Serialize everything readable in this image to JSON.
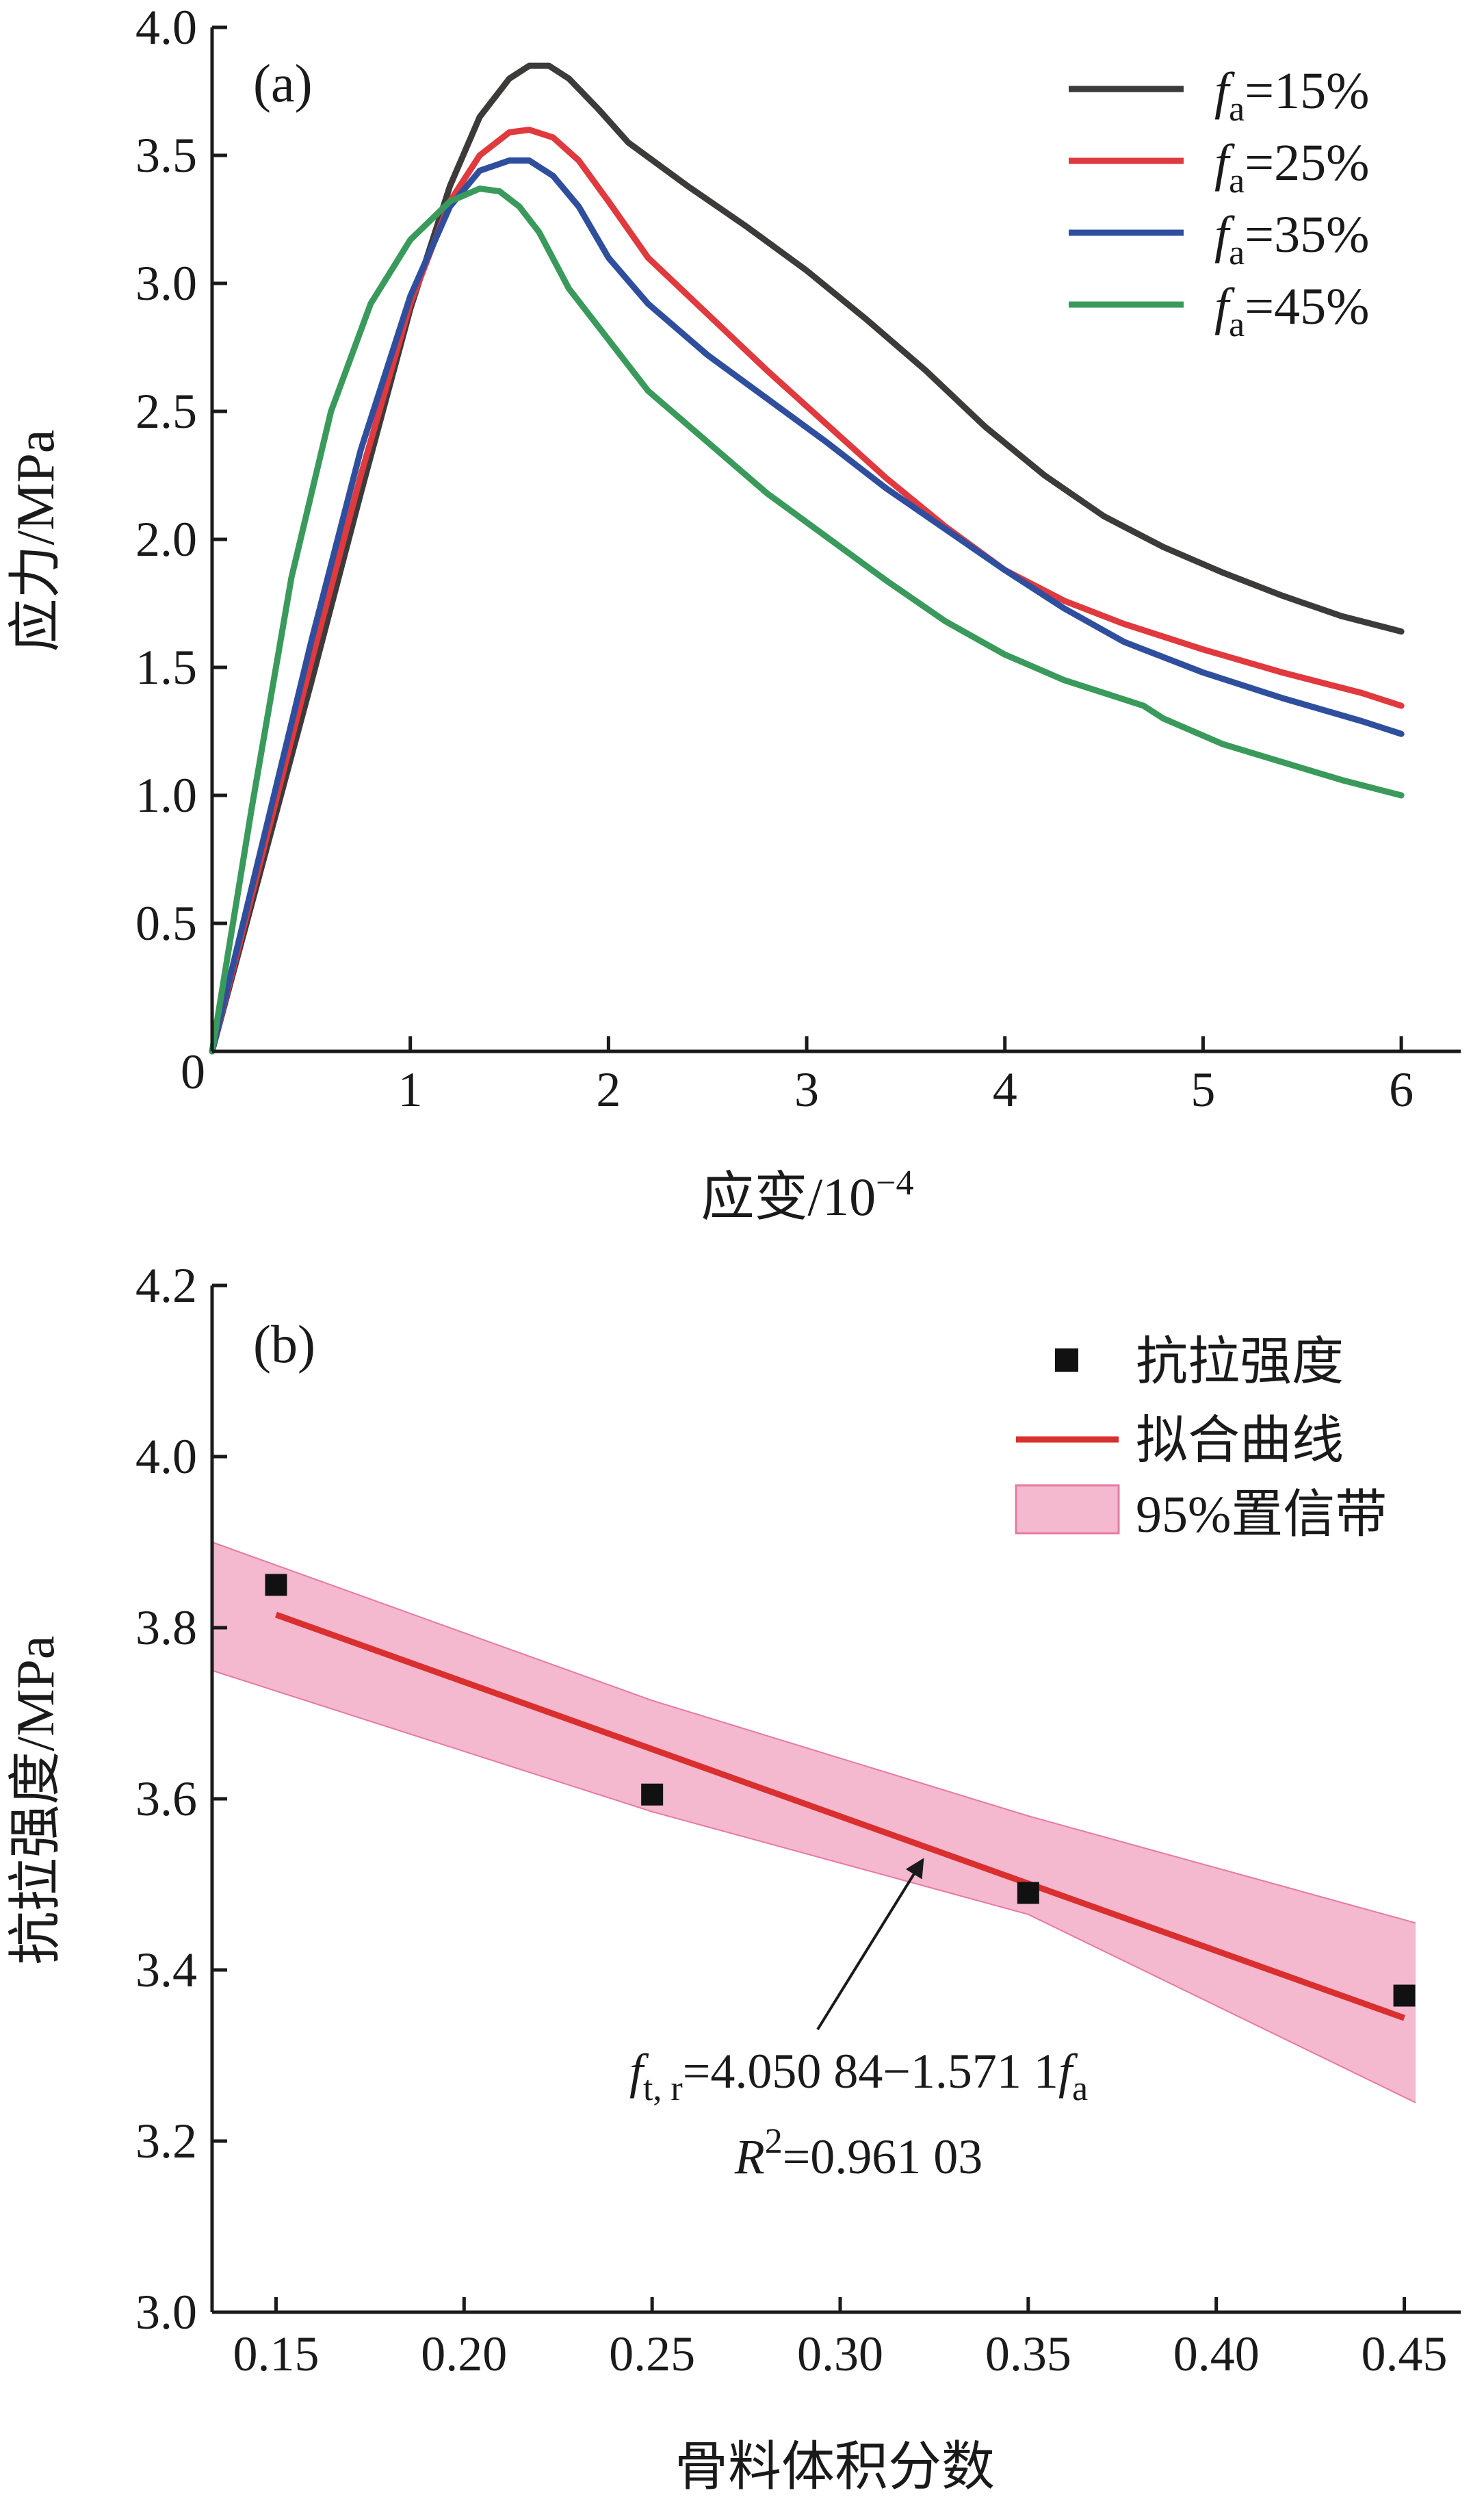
{
  "chart_data": [
    {
      "panel": "(a)",
      "type": "line",
      "title": "",
      "xlabel": "应变/10⁻⁴",
      "ylabel": "应力/MPa",
      "xlim": [
        0,
        6.3
      ],
      "ylim": [
        0,
        4.0
      ],
      "xticks": [
        0,
        1,
        2,
        3,
        4,
        5,
        6
      ],
      "xtick_labels": [
        "0",
        "1",
        "2",
        "3",
        "4",
        "5",
        "6"
      ],
      "yticks": [
        0.5,
        1.0,
        1.5,
        2.0,
        2.5,
        3.0,
        3.5,
        4.0
      ],
      "ytick_labels": [
        "0.5",
        "1.0",
        "1.5",
        "2.0",
        "2.5",
        "3.0",
        "3.5",
        "4.0"
      ],
      "legend_position": "top-right",
      "series": [
        {
          "name": "15%",
          "legend_prefix": "f",
          "legend_sub": "a",
          "legend_suffix": "=15%",
          "color": "#3d3a3a",
          "x": [
            0,
            0.25,
            0.5,
            0.75,
            1.0,
            1.2,
            1.35,
            1.5,
            1.6,
            1.7,
            1.8,
            1.95,
            2.1,
            2.4,
            2.7,
            3.0,
            3.3,
            3.6,
            3.9,
            4.2,
            4.5,
            4.8,
            5.1,
            5.4,
            5.7,
            6.0
          ],
          "y": [
            0,
            0.72,
            1.44,
            2.18,
            2.9,
            3.38,
            3.65,
            3.8,
            3.85,
            3.85,
            3.8,
            3.68,
            3.55,
            3.38,
            3.22,
            3.05,
            2.86,
            2.66,
            2.44,
            2.25,
            2.09,
            1.97,
            1.87,
            1.78,
            1.7,
            1.64
          ]
        },
        {
          "name": "25%",
          "legend_prefix": "f",
          "legend_sub": "a",
          "legend_suffix": "=25%",
          "color": "#e0393e",
          "x": [
            0,
            0.25,
            0.5,
            0.75,
            1.0,
            1.2,
            1.35,
            1.5,
            1.6,
            1.72,
            1.85,
            2.0,
            2.2,
            2.5,
            2.8,
            3.1,
            3.4,
            3.7,
            4.0,
            4.3,
            4.6,
            5.0,
            5.4,
            5.8,
            6.0
          ],
          "y": [
            0,
            0.76,
            1.52,
            2.25,
            2.92,
            3.32,
            3.5,
            3.59,
            3.6,
            3.57,
            3.48,
            3.32,
            3.1,
            2.88,
            2.66,
            2.45,
            2.24,
            2.05,
            1.88,
            1.76,
            1.67,
            1.57,
            1.48,
            1.4,
            1.35
          ]
        },
        {
          "name": "35%",
          "legend_prefix": "f",
          "legend_sub": "a",
          "legend_suffix": "=35%",
          "color": "#2f4f9e",
          "x": [
            0,
            0.25,
            0.5,
            0.75,
            1.0,
            1.2,
            1.35,
            1.5,
            1.6,
            1.72,
            1.85,
            2.0,
            2.2,
            2.5,
            2.8,
            3.1,
            3.4,
            3.7,
            4.0,
            4.3,
            4.6,
            5.0,
            5.4,
            5.8,
            6.0
          ],
          "y": [
            0,
            0.8,
            1.6,
            2.35,
            2.95,
            3.3,
            3.44,
            3.48,
            3.48,
            3.42,
            3.3,
            3.1,
            2.92,
            2.72,
            2.55,
            2.38,
            2.2,
            2.04,
            1.88,
            1.73,
            1.6,
            1.48,
            1.38,
            1.29,
            1.24
          ]
        },
        {
          "name": "45%",
          "legend_prefix": "f",
          "legend_sub": "a",
          "legend_suffix": "=45%",
          "color": "#3a9a5c",
          "x": [
            0,
            0.2,
            0.4,
            0.6,
            0.8,
            1.0,
            1.2,
            1.35,
            1.45,
            1.55,
            1.65,
            1.8,
            2.0,
            2.2,
            2.5,
            2.8,
            3.1,
            3.4,
            3.7,
            4.0,
            4.3,
            4.7,
            4.8,
            5.1,
            5.4,
            5.7,
            6.0
          ],
          "y": [
            0,
            0.95,
            1.85,
            2.5,
            2.92,
            3.17,
            3.32,
            3.37,
            3.36,
            3.3,
            3.2,
            2.98,
            2.78,
            2.58,
            2.38,
            2.18,
            2.01,
            1.84,
            1.68,
            1.55,
            1.45,
            1.35,
            1.3,
            1.2,
            1.13,
            1.06,
            1.0
          ]
        }
      ]
    },
    {
      "panel": "(b)",
      "type": "scatter",
      "title": "",
      "xlabel": "骨料体积分数",
      "ylabel": "抗拉强度/MPa",
      "xlim": [
        0.133,
        0.465
      ],
      "ylim": [
        3.0,
        4.2
      ],
      "xticks": [
        0.15,
        0.2,
        0.25,
        0.3,
        0.35,
        0.4,
        0.45
      ],
      "xtick_labels": [
        "0.15",
        "0.20",
        "0.25",
        "0.30",
        "0.35",
        "0.40",
        "0.45"
      ],
      "yticks": [
        3.0,
        3.2,
        3.4,
        3.6,
        3.8,
        4.0,
        4.2
      ],
      "ytick_labels": [
        "3.0",
        "3.2",
        "3.4",
        "3.6",
        "3.8",
        "4.0",
        "4.2"
      ],
      "legend_position": "top-right",
      "points": {
        "name": "抗拉强度",
        "x": [
          0.15,
          0.25,
          0.35,
          0.45
        ],
        "y": [
          3.85,
          3.605,
          3.49,
          3.37
        ],
        "color": "#111111"
      },
      "fit": {
        "name": "拟合曲线",
        "intercept": 4.05084,
        "slope": -1.5711,
        "x_range": [
          0.15,
          0.45
        ],
        "color": "#d9302f"
      },
      "band": {
        "name": "95%置信带",
        "x": [
          0.133,
          0.25,
          0.35,
          0.453
        ],
        "upper": [
          3.9,
          3.715,
          3.58,
          3.455
        ],
        "lower": [
          3.75,
          3.585,
          3.465,
          3.245
        ],
        "color": "#f4b8cf",
        "edge_color": "#e77aa2"
      },
      "annotation": {
        "eq_prefix": "f",
        "eq_sub1": "t, r",
        "eq_mid": "=4.050 84−1.571 1",
        "eq_var": "f",
        "eq_sub2": "a",
        "r2_prefix": "R",
        "r2_sup": "2",
        "r2_suffix": "=0.961 03",
        "arrow_target_x": 0.322,
        "arrow_target_y": 3.545
      }
    }
  ],
  "axis_a_xlabel_main": "应变/10",
  "axis_a_xlabel_exp": "−4",
  "axis_a_origin_label": "0"
}
